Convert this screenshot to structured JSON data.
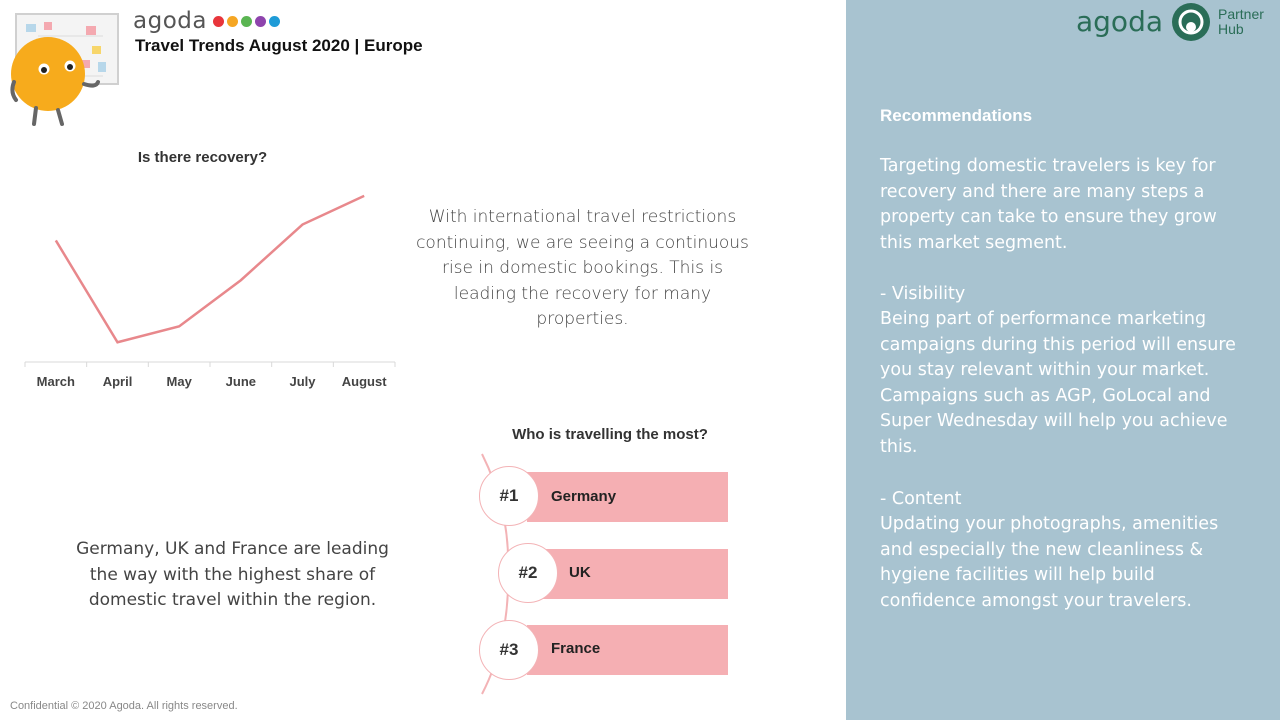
{
  "header": {
    "brand": "agoda",
    "brand_dot_colors": [
      "#e8353b",
      "#f5a623",
      "#5ab552",
      "#8e44ad",
      "#1e9bd7"
    ],
    "title": "Travel Trends August 2020 | Europe",
    "partner_brand": "agoda",
    "partner_hub_line1": "Partner",
    "partner_hub_line2": "Hub"
  },
  "recovery_chart": {
    "title": "Is there recovery?"
  },
  "chart_data": {
    "type": "line",
    "title": "Is there recovery?",
    "categories": [
      "March",
      "April",
      "May",
      "June",
      "July",
      "August"
    ],
    "values": [
      72,
      8,
      18,
      47,
      82,
      100
    ],
    "ylim": [
      0,
      110
    ],
    "grid": false,
    "color": "#e8888c"
  },
  "insight_1": "With international travel restrictions continuing,  we are seeing a continuous rise in domestic bookings. This is leading the recovery for many properties.",
  "insight_2": "Germany, UK and France are leading the way with the highest share of domestic travel within the region.",
  "ranking": {
    "title": "Who is travelling the most?",
    "items": [
      {
        "rank": "#1",
        "country": "Germany"
      },
      {
        "rank": "#2",
        "country": "UK"
      },
      {
        "rank": "#3",
        "country": "France"
      }
    ],
    "bar_color": "#f5afb3"
  },
  "recommendations": {
    "title": "Recommendations",
    "intro": "Targeting domestic travelers is key for recovery and there are many steps a property can take to ensure they grow this market segment.",
    "visibility_heading": "-    Visibility",
    "visibility_body": "Being part of performance marketing campaigns during this period will ensure you stay relevant within your market. Campaigns such as AGP, GoLocal and Super Wednesday will help you achieve this.",
    "content_heading": "-    Content",
    "content_body": "Updating your photographs, amenities and especially the new cleanliness & hygiene facilities will help build confidence amongst your travelers."
  },
  "footer": "Confidential © 2020 Agoda. All rights reserved.",
  "colors": {
    "panel": "#a8c3d0",
    "partner_green": "#2a6d57",
    "line": "#e8888c"
  }
}
